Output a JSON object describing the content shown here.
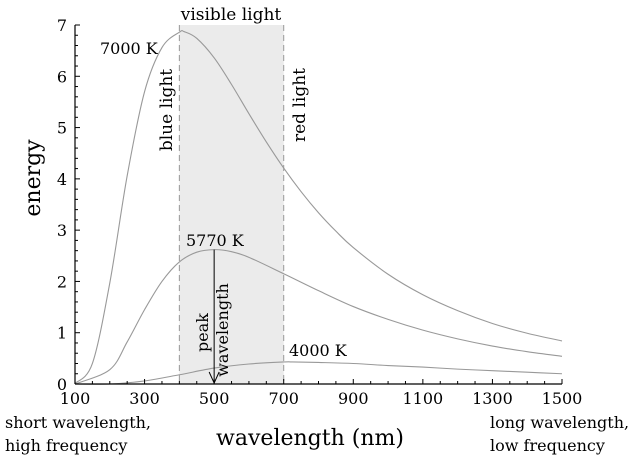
{
  "chart_data": {
    "type": "line",
    "title": "",
    "xlabel": "wavelength (nm)",
    "ylabel": "energy",
    "xlim": [
      100,
      1500
    ],
    "ylim": [
      0,
      7
    ],
    "x_ticks": [
      100,
      300,
      500,
      700,
      900,
      1100,
      1300,
      1500
    ],
    "y_ticks": [
      0,
      1,
      2,
      3,
      4,
      5,
      6,
      7
    ],
    "grid": false,
    "legend": "none",
    "series": [
      {
        "name": "7000 K",
        "x": [
          100,
          150,
          200,
          250,
          300,
          350,
          400,
          414,
          450,
          500,
          550,
          600,
          650,
          700,
          750,
          800,
          850,
          900,
          1000,
          1100,
          1200,
          1300,
          1400,
          1500
        ],
        "y": [
          0.01,
          0.4,
          1.97,
          4.06,
          5.7,
          6.56,
          6.86,
          6.87,
          6.74,
          6.36,
          5.84,
          5.27,
          4.72,
          4.21,
          3.75,
          3.34,
          2.98,
          2.66,
          2.14,
          1.74,
          1.43,
          1.18,
          0.99,
          0.84
        ]
      },
      {
        "name": "5770 K",
        "x": [
          100,
          200,
          250,
          300,
          350,
          400,
          450,
          502,
          550,
          600,
          700,
          800,
          900,
          1000,
          1100,
          1200,
          1300,
          1400,
          1500
        ],
        "y": [
          0.0,
          0.28,
          0.82,
          1.45,
          2.0,
          2.38,
          2.57,
          2.62,
          2.58,
          2.47,
          2.15,
          1.82,
          1.51,
          1.26,
          1.05,
          0.88,
          0.74,
          0.63,
          0.54
        ]
      },
      {
        "name": "4000 K",
        "x": [
          100,
          200,
          300,
          400,
          500,
          600,
          700,
          725,
          800,
          900,
          1000,
          1100,
          1200,
          1300,
          1400,
          1500
        ],
        "y": [
          0.0,
          0.0,
          0.06,
          0.18,
          0.31,
          0.39,
          0.43,
          0.43,
          0.42,
          0.4,
          0.36,
          0.33,
          0.29,
          0.26,
          0.23,
          0.2
        ]
      }
    ],
    "visible_band": {
      "label": "visible light",
      "from": 400,
      "to": 700,
      "color": "#ebebeb"
    },
    "annotations": {
      "blue_light": "blue light",
      "red_light": "red light",
      "peak_wavelength": "peak wavelength",
      "peak_x": 500,
      "short_end": [
        "short wavelength,",
        "high frequency"
      ],
      "long_end": [
        "long wavelength,",
        "low frequency"
      ]
    },
    "colors": {
      "curve": "#999999",
      "axis": "#000000",
      "band_edge": "#999999"
    }
  }
}
